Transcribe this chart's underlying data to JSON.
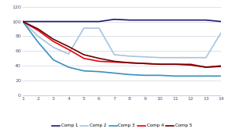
{
  "x": [
    1,
    2,
    3,
    4,
    5,
    6,
    7,
    8,
    9,
    10,
    11,
    12,
    13,
    14
  ],
  "comp1": [
    100,
    100,
    100,
    100,
    100,
    100,
    103,
    102,
    102,
    102,
    102,
    102,
    102,
    100
  ],
  "comp2": [
    100,
    80,
    65,
    56,
    91,
    91,
    55,
    53,
    52,
    51,
    51,
    51,
    51,
    85
  ],
  "comp3": [
    100,
    72,
    48,
    38,
    33,
    32,
    30,
    28,
    27,
    27,
    26,
    26,
    26,
    26
  ],
  "comp4": [
    100,
    88,
    73,
    62,
    50,
    46,
    45,
    44,
    43,
    42,
    42,
    42,
    38,
    40
  ],
  "comp5": [
    100,
    90,
    76,
    66,
    55,
    50,
    46,
    44,
    43,
    42,
    42,
    41,
    38,
    39
  ],
  "colors": {
    "comp1": "#1a1a6e",
    "comp2": "#a8c4e0",
    "comp3": "#3a8fbf",
    "comp4": "#e8000a",
    "comp5": "#6b0000"
  },
  "ylim": [
    0,
    120
  ],
  "yticks": [
    0,
    20,
    40,
    60,
    80,
    100,
    120
  ],
  "xticks": [
    1,
    2,
    3,
    4,
    5,
    6,
    7,
    8,
    9,
    10,
    11,
    12,
    13,
    14
  ],
  "legend_labels": [
    "Comp 1",
    "Comp 2",
    "Comp 3",
    "Comp 4",
    "Comp 5"
  ],
  "linewidth": 1.2,
  "background_color": "#ffffff",
  "grid_color": "#d8dce8"
}
